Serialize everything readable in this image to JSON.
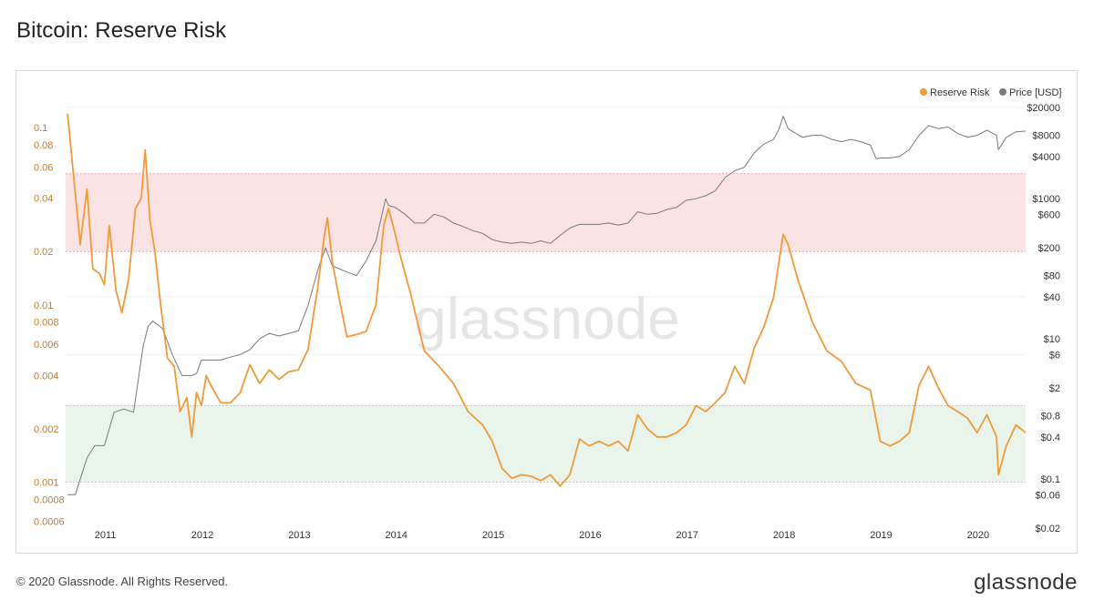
{
  "page": {
    "title": "Bitcoin: Reserve Risk",
    "footer": "© 2020 Glassnode. All Rights Reserved.",
    "brand": "glassnode",
    "watermark": "glassnode"
  },
  "chart_data": {
    "type": "line",
    "title": "Bitcoin: Reserve Risk",
    "y_scale": "log",
    "legend": {
      "placement": "top-right",
      "entries": [
        "Reserve Risk",
        "Price [USD]"
      ]
    },
    "colors": {
      "reserve_risk": "#f09a3a",
      "price": "#7a7a7a",
      "red_zone": "#fbe3e3",
      "green_zone": "#e9f5ea"
    },
    "x_ticks": [
      "2011",
      "2012",
      "2013",
      "2014",
      "2015",
      "2016",
      "2017",
      "2018",
      "2019",
      "2020"
    ],
    "x_range": [
      2010.6,
      2020.5
    ],
    "y_left": {
      "label": "",
      "ticks": [
        "0.1",
        "0.08",
        "0.06",
        "0.04",
        "0.02",
        "0.01",
        "0.008",
        "0.006",
        "0.004",
        "0.002",
        "0.001",
        "0.0008",
        "0.0006"
      ],
      "range": [
        0.00055,
        0.13
      ]
    },
    "y_right": {
      "label": "",
      "ticks": [
        "$20000",
        "$8000",
        "$4000",
        "$1000",
        "$600",
        "$200",
        "$80",
        "$40",
        "$10",
        "$6",
        "$2",
        "$0.8",
        "$0.4",
        "$0.1",
        "$0.06",
        "$0.02"
      ],
      "range": [
        0.02,
        20000
      ]
    },
    "bands": [
      {
        "name": "high-risk-band",
        "y_from": 0.02,
        "y_to": 0.055
      },
      {
        "name": "low-risk-band",
        "y_from": 0.001,
        "y_to": 0.0027
      }
    ],
    "series": [
      {
        "name": "Reserve Risk",
        "axis": "left",
        "x": [
          2010.62,
          2010.68,
          2010.75,
          2010.82,
          2010.88,
          2010.95,
          2011.0,
          2011.05,
          2011.12,
          2011.18,
          2011.25,
          2011.32,
          2011.38,
          2011.42,
          2011.47,
          2011.52,
          2011.58,
          2011.65,
          2011.72,
          2011.78,
          2011.85,
          2011.9,
          2011.95,
          2012.0,
          2012.05,
          2012.1,
          2012.2,
          2012.3,
          2012.4,
          2012.5,
          2012.6,
          2012.7,
          2012.8,
          2012.9,
          2013.0,
          2013.1,
          2013.2,
          2013.27,
          2013.3,
          2013.35,
          2013.42,
          2013.5,
          2013.6,
          2013.7,
          2013.8,
          2013.88,
          2013.93,
          2014.0,
          2014.05,
          2014.15,
          2014.3,
          2014.45,
          2014.6,
          2014.75,
          2014.9,
          2015.0,
          2015.1,
          2015.2,
          2015.3,
          2015.4,
          2015.5,
          2015.6,
          2015.7,
          2015.8,
          2015.9,
          2016.0,
          2016.1,
          2016.2,
          2016.3,
          2016.4,
          2016.5,
          2016.6,
          2016.7,
          2016.8,
          2016.9,
          2017.0,
          2017.1,
          2017.2,
          2017.3,
          2017.4,
          2017.5,
          2017.6,
          2017.7,
          2017.8,
          2017.9,
          2017.96,
          2018.0,
          2018.05,
          2018.15,
          2018.3,
          2018.45,
          2018.6,
          2018.75,
          2018.9,
          2019.0,
          2019.1,
          2019.2,
          2019.3,
          2019.4,
          2019.5,
          2019.6,
          2019.7,
          2019.8,
          2019.9,
          2020.0,
          2020.1,
          2020.2,
          2020.22,
          2020.3,
          2020.4,
          2020.5
        ],
        "y": [
          0.12,
          0.055,
          0.022,
          0.045,
          0.016,
          0.015,
          0.013,
          0.028,
          0.012,
          0.009,
          0.014,
          0.035,
          0.04,
          0.075,
          0.03,
          0.02,
          0.01,
          0.005,
          0.0045,
          0.0025,
          0.003,
          0.0018,
          0.0032,
          0.0027,
          0.004,
          0.0035,
          0.0028,
          0.0028,
          0.0032,
          0.0046,
          0.0036,
          0.0043,
          0.0038,
          0.0042,
          0.0043,
          0.0056,
          0.0125,
          0.025,
          0.031,
          0.0175,
          0.011,
          0.0066,
          0.0068,
          0.0071,
          0.01,
          0.028,
          0.035,
          0.025,
          0.019,
          0.012,
          0.0055,
          0.0045,
          0.0036,
          0.0025,
          0.0021,
          0.0017,
          0.0012,
          0.00105,
          0.0011,
          0.00108,
          0.00102,
          0.0011,
          0.00095,
          0.0011,
          0.00175,
          0.0016,
          0.0017,
          0.0016,
          0.0017,
          0.0015,
          0.0024,
          0.002,
          0.0018,
          0.0018,
          0.0019,
          0.0021,
          0.0027,
          0.0025,
          0.0028,
          0.0032,
          0.0045,
          0.0036,
          0.0057,
          0.0075,
          0.011,
          0.018,
          0.025,
          0.022,
          0.014,
          0.008,
          0.0055,
          0.0048,
          0.0036,
          0.0033,
          0.0017,
          0.0016,
          0.0017,
          0.0019,
          0.0035,
          0.0045,
          0.0034,
          0.0027,
          0.0025,
          0.0023,
          0.0019,
          0.0024,
          0.0018,
          0.0011,
          0.0016,
          0.0021,
          0.0019
        ]
      },
      {
        "name": "Price [USD]",
        "axis": "right",
        "x": [
          2010.62,
          2010.7,
          2010.75,
          2010.82,
          2010.9,
          2011.0,
          2011.1,
          2011.2,
          2011.3,
          2011.4,
          2011.45,
          2011.5,
          2011.6,
          2011.7,
          2011.8,
          2011.9,
          2011.95,
          2012.0,
          2012.1,
          2012.2,
          2012.3,
          2012.4,
          2012.5,
          2012.6,
          2012.7,
          2012.8,
          2012.9,
          2013.0,
          2013.1,
          2013.2,
          2013.28,
          2013.35,
          2013.5,
          2013.6,
          2013.7,
          2013.8,
          2013.9,
          2013.93,
          2014.0,
          2014.1,
          2014.2,
          2014.3,
          2014.4,
          2014.5,
          2014.6,
          2014.7,
          2014.8,
          2014.9,
          2015.0,
          2015.1,
          2015.2,
          2015.3,
          2015.4,
          2015.5,
          2015.6,
          2015.7,
          2015.8,
          2015.9,
          2016.0,
          2016.1,
          2016.2,
          2016.3,
          2016.4,
          2016.5,
          2016.6,
          2016.7,
          2016.8,
          2016.9,
          2017.0,
          2017.1,
          2017.2,
          2017.3,
          2017.4,
          2017.5,
          2017.6,
          2017.7,
          2017.8,
          2017.9,
          2017.96,
          2018.0,
          2018.05,
          2018.1,
          2018.2,
          2018.3,
          2018.4,
          2018.5,
          2018.6,
          2018.7,
          2018.8,
          2018.9,
          2018.96,
          2019.0,
          2019.1,
          2019.2,
          2019.3,
          2019.4,
          2019.5,
          2019.6,
          2019.7,
          2019.8,
          2019.9,
          2020.0,
          2020.1,
          2020.2,
          2020.22,
          2020.3,
          2020.4,
          2020.5
        ],
        "y": [
          0.06,
          0.06,
          0.1,
          0.2,
          0.3,
          0.3,
          0.9,
          1.0,
          0.9,
          8,
          15,
          18,
          14,
          6,
          3,
          3,
          3.2,
          5,
          5,
          5,
          5.5,
          6,
          7,
          10,
          12,
          11,
          12,
          13,
          30,
          95,
          200,
          110,
          90,
          80,
          130,
          250,
          1000,
          800,
          750,
          600,
          450,
          450,
          600,
          550,
          450,
          400,
          350,
          320,
          260,
          240,
          230,
          240,
          230,
          250,
          230,
          300,
          380,
          430,
          430,
          430,
          450,
          420,
          450,
          650,
          600,
          620,
          700,
          750,
          950,
          1000,
          1100,
          1300,
          2000,
          2500,
          2800,
          4500,
          6000,
          7000,
          10000,
          15000,
          10000,
          9000,
          7500,
          8000,
          8000,
          7000,
          6500,
          7000,
          6500,
          5800,
          3700,
          3800,
          3800,
          4000,
          5000,
          8000,
          11000,
          10000,
          10500,
          8500,
          7500,
          8000,
          9500,
          8000,
          5000,
          7500,
          9000,
          9200
        ]
      }
    ]
  }
}
